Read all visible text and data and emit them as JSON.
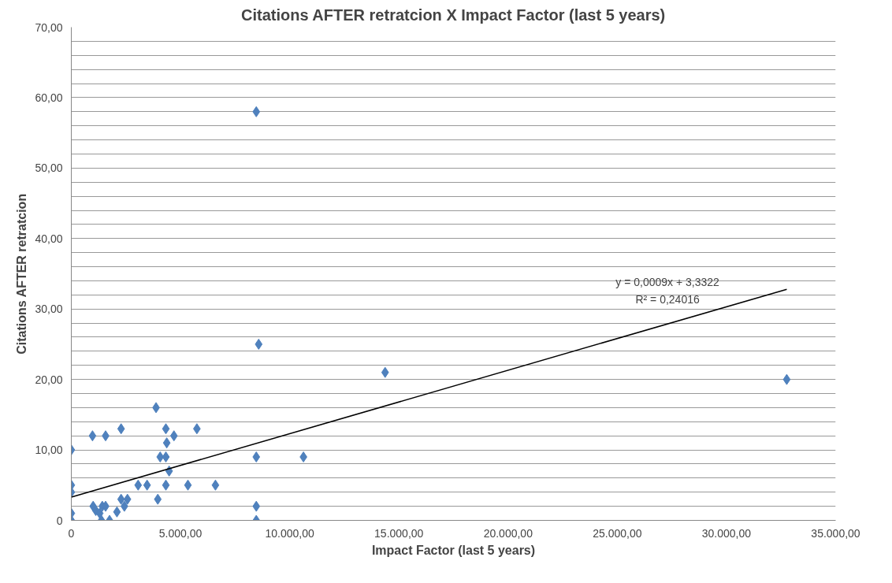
{
  "chart_data": {
    "type": "scatter",
    "title": "Citations AFTER retratcion X Impact Factor (last 5 years)",
    "xlabel": "Impact Factor (last 5 years)",
    "ylabel": "Citations AFTER retratcion",
    "grid": "y",
    "xlim": [
      0,
      35000
    ],
    "ylim": [
      0,
      70
    ],
    "xticks": [
      {
        "value": 0,
        "label": "0"
      },
      {
        "value": 5000,
        "label": "5.000,00"
      },
      {
        "value": 10000,
        "label": "10.000,00"
      },
      {
        "value": 15000,
        "label": "15.000,00"
      },
      {
        "value": 20000,
        "label": "20.000,00"
      },
      {
        "value": 25000,
        "label": "25.000,00"
      },
      {
        "value": 30000,
        "label": "30.000,00"
      },
      {
        "value": 35000,
        "label": "35.000,00"
      }
    ],
    "yticks": [
      {
        "value": 0,
        "label": "0"
      },
      {
        "value": 2,
        "label": null
      },
      {
        "value": 4,
        "label": null
      },
      {
        "value": 6,
        "label": null
      },
      {
        "value": 8,
        "label": null
      },
      {
        "value": 10,
        "label": "10,00"
      },
      {
        "value": 12,
        "label": null
      },
      {
        "value": 14,
        "label": null
      },
      {
        "value": 16,
        "label": null
      },
      {
        "value": 18,
        "label": null
      },
      {
        "value": 20,
        "label": "20,00"
      },
      {
        "value": 22,
        "label": null
      },
      {
        "value": 24,
        "label": null
      },
      {
        "value": 26,
        "label": null
      },
      {
        "value": 28,
        "label": null
      },
      {
        "value": 30,
        "label": "30,00"
      },
      {
        "value": 32,
        "label": null
      },
      {
        "value": 34,
        "label": null
      },
      {
        "value": 36,
        "label": null
      },
      {
        "value": 38,
        "label": null
      },
      {
        "value": 40,
        "label": "40,00"
      },
      {
        "value": 42,
        "label": null
      },
      {
        "value": 44,
        "label": null
      },
      {
        "value": 46,
        "label": null
      },
      {
        "value": 48,
        "label": null
      },
      {
        "value": 50,
        "label": "50,00"
      },
      {
        "value": 52,
        "label": null
      },
      {
        "value": 54,
        "label": null
      },
      {
        "value": 56,
        "label": null
      },
      {
        "value": 58,
        "label": null
      },
      {
        "value": 60,
        "label": "60,00"
      },
      {
        "value": 62,
        "label": null
      },
      {
        "value": 64,
        "label": null
      },
      {
        "value": 66,
        "label": null
      },
      {
        "value": 68,
        "label": null
      },
      {
        "value": 70,
        "label": "70,00"
      }
    ],
    "annotations": [
      "y = 0,0009x + 3,3322",
      "R² = 0,24016"
    ],
    "series": [
      {
        "marker": "diamond",
        "color": "#4f81bd",
        "x": [
          0,
          0,
          0,
          0,
          0,
          970,
          1570,
          2280,
          3880,
          1000,
          1120,
          1300,
          1380,
          1420,
          1570,
          1750,
          2090,
          2280,
          2430,
          2570,
          3060,
          3470,
          3960,
          4070,
          4330,
          4330,
          4330,
          4370,
          4480,
          4700,
          5340,
          5750,
          6600,
          8470,
          8470,
          8470,
          8470,
          8580,
          10630,
          14370,
          32760
        ],
        "values": [
          10,
          5,
          4,
          1,
          0,
          12,
          12,
          13,
          16,
          2,
          1.4,
          1,
          0,
          2,
          2,
          0,
          1.2,
          3,
          2,
          3,
          5,
          5,
          3,
          9,
          9,
          5,
          13,
          11,
          7,
          12,
          5,
          13,
          5,
          58,
          9,
          2,
          0,
          25,
          9,
          21,
          20
        ]
      },
      {
        "type": "line",
        "marker": "none",
        "color": "#000000",
        "x": [
          0,
          32760
        ],
        "values": [
          3.3,
          32.8
        ]
      }
    ]
  }
}
